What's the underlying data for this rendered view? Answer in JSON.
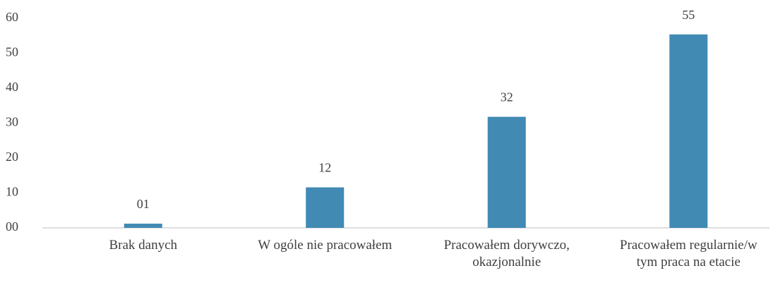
{
  "chart_data": {
    "type": "bar",
    "categories": [
      "Brak danych",
      "W ogóle nie pracowałem",
      "Pracowałem dorywczo, okazjonalnie",
      "Pracowałem regularnie/w tym praca na etacie"
    ],
    "values": [
      1.2,
      11.6,
      31.8,
      55.4
    ],
    "value_labels": [
      "01",
      "12",
      "32",
      "55"
    ],
    "color": "#418ab3",
    "ylim": [
      0,
      60
    ],
    "yticks": [
      {
        "value": 0,
        "label": "00"
      },
      10,
      20,
      30,
      40,
      50,
      60
    ],
    "grid": false
  }
}
